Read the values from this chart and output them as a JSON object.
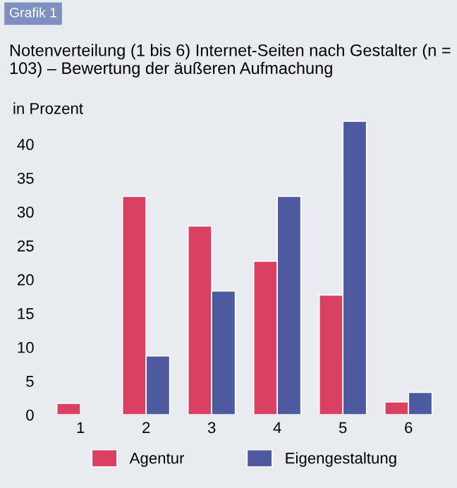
{
  "chart_data": {
    "type": "bar",
    "title": "Notenverteilung (1 bis 6) Internet-Seiten nach Gestalter (n = 103) – Bewertung der äußeren Aufmachung",
    "ylabel": "in Prozent",
    "annotations": [
      "Grafik 1"
    ],
    "categories": [
      "1",
      "2",
      "3",
      "4",
      "5",
      "6"
    ],
    "series": [
      {
        "name": "Agentur",
        "color": "#d94062",
        "values": [
          1.7,
          32.3,
          27.9,
          22.7,
          17.7,
          1.9
        ]
      },
      {
        "name": "Eigengestaltung",
        "color": "#4e5aa0",
        "values": [
          null,
          8.7,
          18.3,
          32.3,
          43.4,
          3.3
        ]
      }
    ],
    "ylim": [
      0,
      44
    ],
    "yticks": [
      0,
      5,
      10,
      15,
      20,
      25,
      30,
      35,
      40
    ],
    "grid": false,
    "legend": "bottom"
  }
}
